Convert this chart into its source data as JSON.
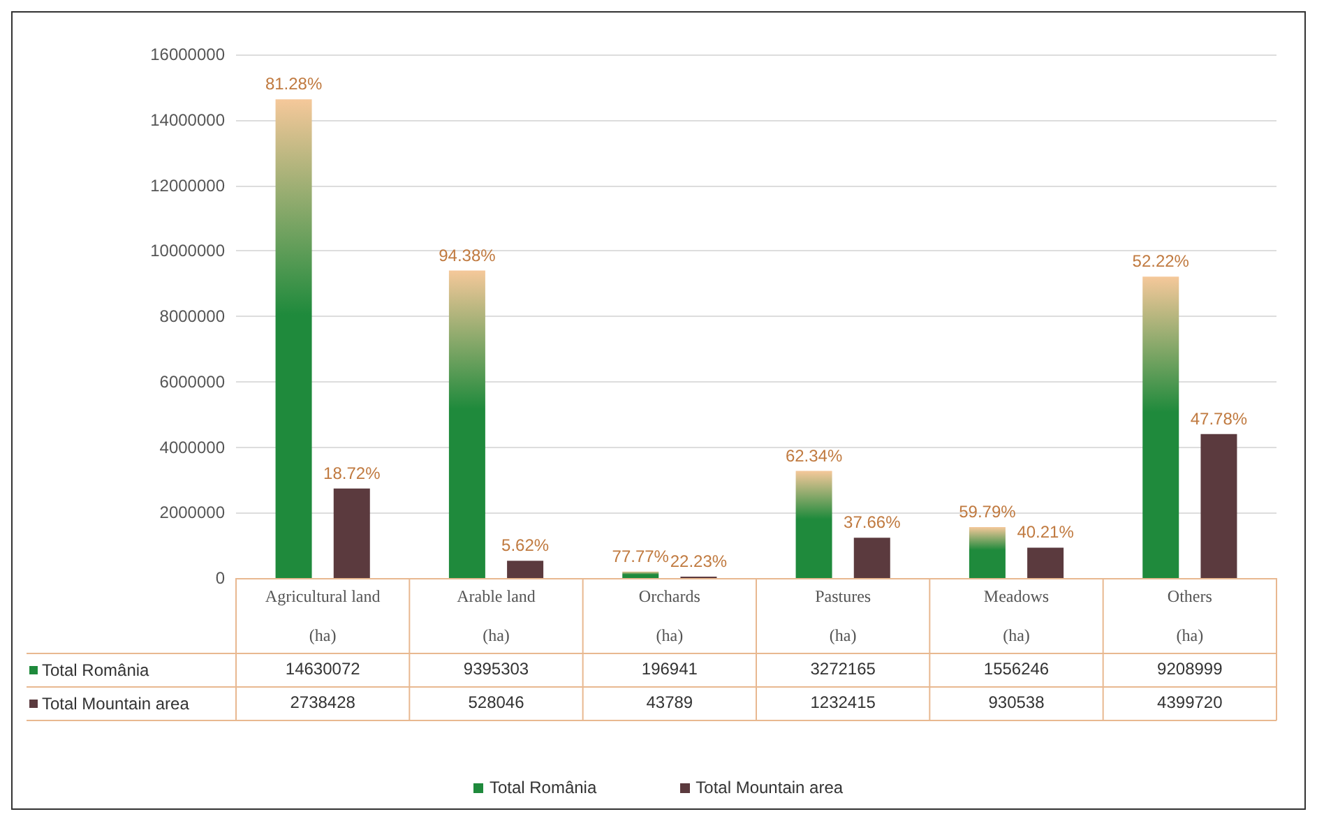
{
  "chart_data": {
    "type": "bar",
    "categories": [
      "Agricultural land (ha)",
      "Arable land (ha)",
      "Orchards (ha)",
      "Pastures (ha)",
      "Meadows (ha)",
      "Others (ha)"
    ],
    "series": [
      {
        "name": "Total România",
        "color": "#1f8a3c",
        "values": [
          14630072,
          9395303,
          196941,
          3272165,
          1556246,
          9208999
        ]
      },
      {
        "name": "Total Mountain area",
        "color": "#5b3a3e",
        "values": [
          2738428,
          528046,
          43789,
          1232415,
          930538,
          4399720
        ]
      }
    ],
    "annotations": [
      "81.28%",
      "18.72%",
      "94.38%",
      "5.62%",
      "77.77%",
      "22.23%",
      "62.34%",
      "37.66%",
      "59.79%",
      "40.21%",
      "52.22%",
      "47.78%"
    ],
    "ylim": [
      0,
      16000000
    ],
    "yticks": [
      0,
      2000000,
      4000000,
      6000000,
      8000000,
      10000000,
      12000000,
      14000000,
      16000000
    ],
    "grid": "y",
    "legend": "bottom",
    "data_labels": true
  }
}
